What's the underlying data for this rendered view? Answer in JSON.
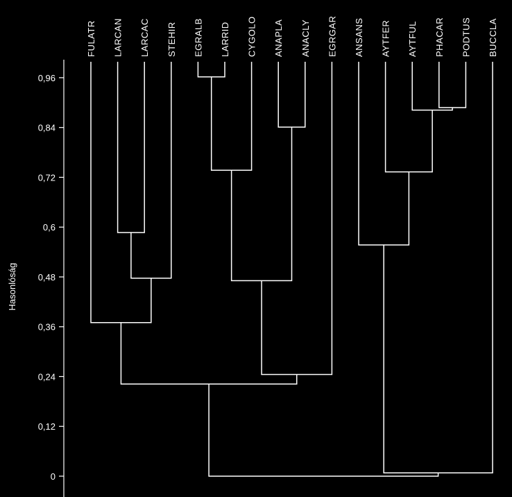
{
  "chart_data": {
    "type": "dendrogram",
    "ylabel": "Hasonlóság",
    "ylim": [
      0,
      1.0
    ],
    "yticks": [
      {
        "value": 0,
        "label": "0"
      },
      {
        "value": 0.12,
        "label": "0,12"
      },
      {
        "value": 0.24,
        "label": "0,24"
      },
      {
        "value": 0.36,
        "label": "0,36"
      },
      {
        "value": 0.48,
        "label": "0,48"
      },
      {
        "value": 0.6,
        "label": "0,6"
      },
      {
        "value": 0.72,
        "label": "0,72"
      },
      {
        "value": 0.84,
        "label": "0,84"
      },
      {
        "value": 0.96,
        "label": "0,96"
      }
    ],
    "leaves": [
      "FULATR",
      "LARCAN",
      "LARCAC",
      "STEHIR",
      "EGRALB",
      "LARRID",
      "CYGOLO",
      "ANAPLA",
      "ANACLY",
      "EGRGAR",
      "ANSANS",
      "AYTFER",
      "AYTFUL",
      "PHACAR",
      "PODTUS",
      "BUCCLA"
    ],
    "merges": [
      {
        "a": "EGRALB",
        "b": "LARRID",
        "height": 0.962
      },
      {
        "a": "PHACAR",
        "b": "PODTUS",
        "height": 0.888
      },
      {
        "a": "AYTFUL",
        "b": "PHACAR+PODTUS",
        "height": 0.882
      },
      {
        "a": "ANAPLA",
        "b": "ANACLY",
        "height": 0.841
      },
      {
        "a": "EGRALB+LARRID",
        "b": "CYGOLO",
        "height": 0.737
      },
      {
        "a": "AYTFER",
        "b": "AYTFUL+PHACAR+PODTUS",
        "height": 0.733
      },
      {
        "a": "LARCAN",
        "b": "LARCAC",
        "height": 0.587
      },
      {
        "a": "ANSANS",
        "b": "AYTFER+AYTFUL+PHACAR+PODTUS",
        "height": 0.557
      },
      {
        "a": "LARCAN+LARCAC",
        "b": "STEHIR",
        "height": 0.477
      },
      {
        "a": "EGRALB+LARRID+CYGOLO",
        "b": "ANAPLA+ANACLY",
        "height": 0.471
      },
      {
        "a": "FULATR",
        "b": "LARCAN+LARCAC+STEHIR",
        "height": 0.37
      },
      {
        "a": "EGRALB+LARRID+CYGOLO+ANAPLA+ANACLY",
        "b": "EGRGAR",
        "height": 0.245
      },
      {
        "a": "FULATR+LARCAN+LARCAC+STEHIR",
        "b": "EGRALB+LARRID+CYGOLO+ANAPLA+ANACLY+EGRGAR",
        "height": 0.222
      },
      {
        "a": "ANSANS+AYTFER+AYTFUL+PHACAR+PODTUS",
        "b": "BUCCLA",
        "height": 0.008
      },
      {
        "a": "FULATR+LARCAN+LARCAC+STEHIR+EGRALB+LARRID+CYGOLO+ANAPLA+ANACLY+EGRGAR",
        "b": "ANSANS+AYTFER+AYTFUL+PHACAR+PODTUS+BUCCLA",
        "height": 0.0
      }
    ],
    "colors": {
      "background": "#000000",
      "foreground": "#ffffff"
    }
  }
}
